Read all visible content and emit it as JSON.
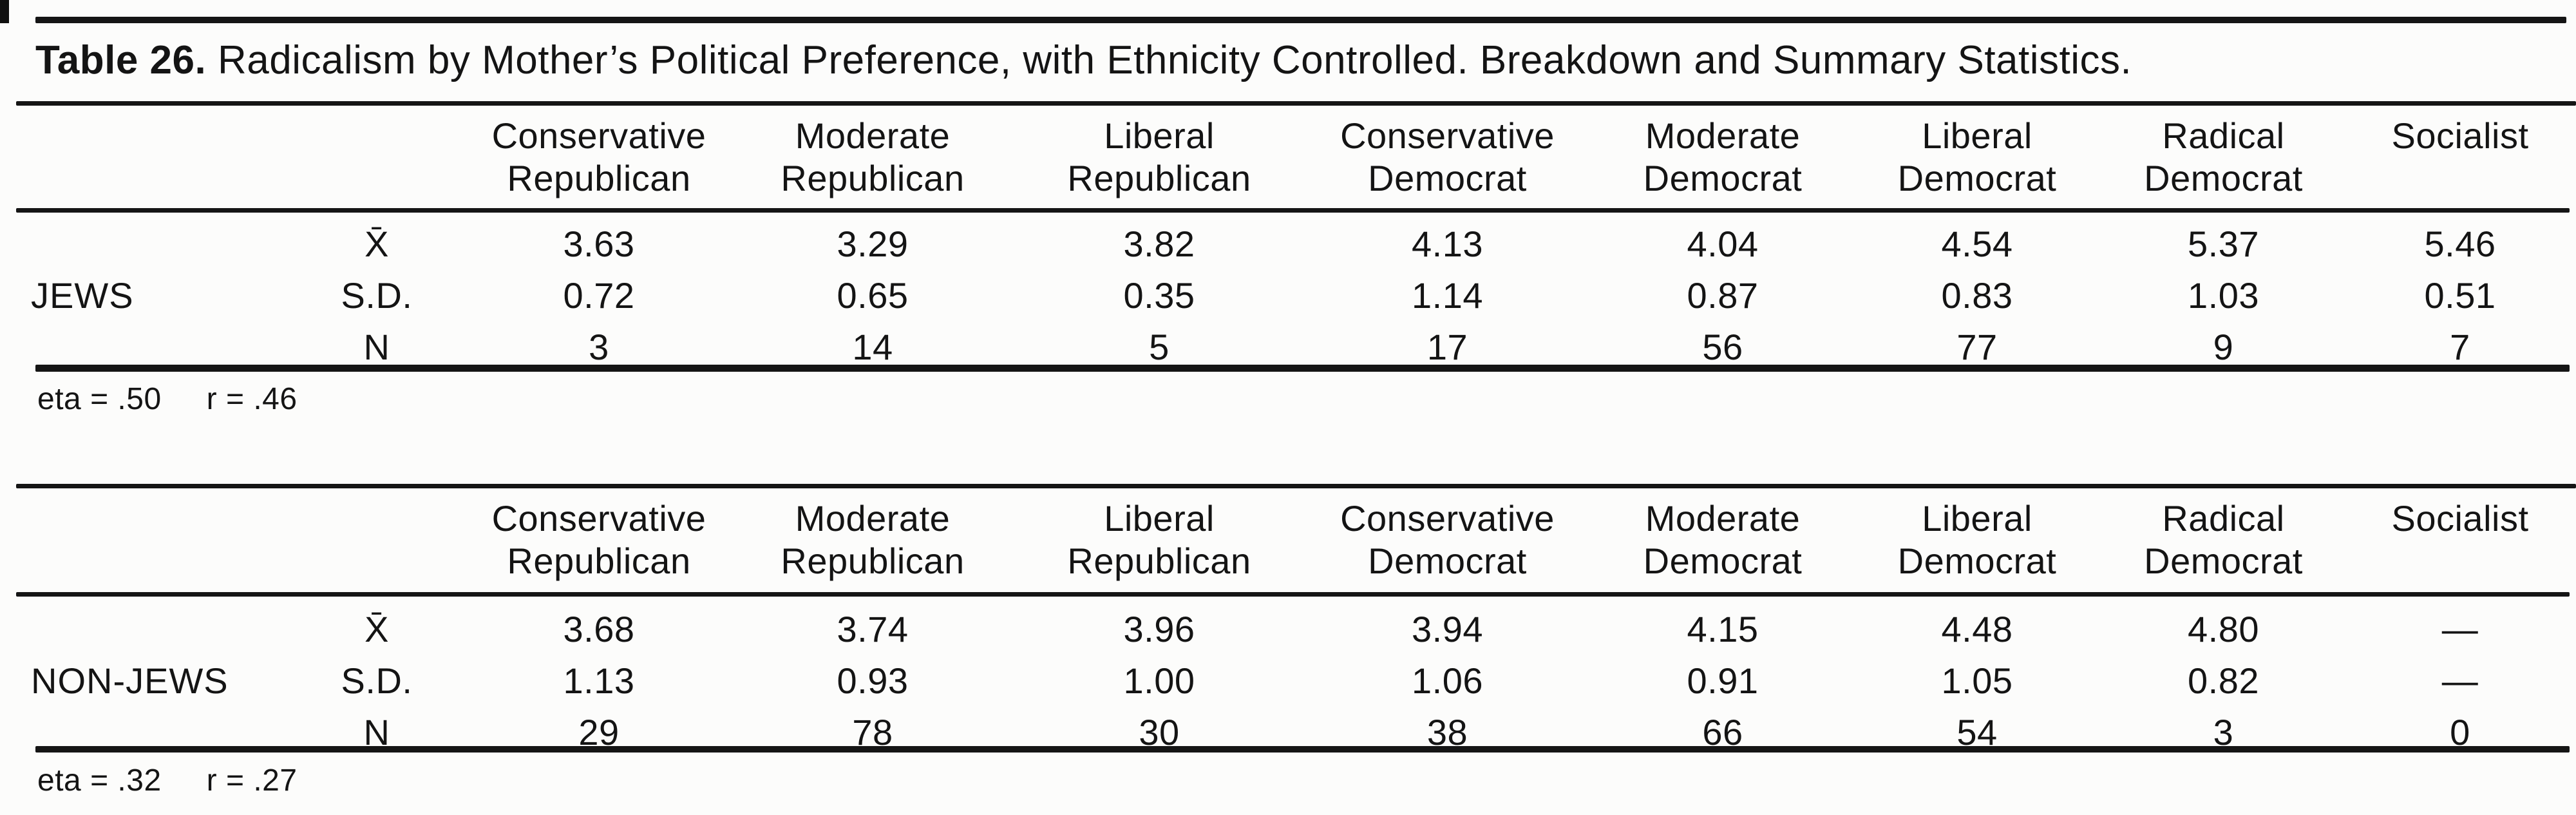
{
  "title": {
    "label": "Table 26.",
    "text": " Radicalism by Mother’s Political Preference, with Ethnicity Controlled. Breakdown and Summary Statistics."
  },
  "columns": [
    {
      "line1": "Conservative",
      "line2": "Republican"
    },
    {
      "line1": "Moderate",
      "line2": "Republican"
    },
    {
      "line1": "Liberal",
      "line2": "Republican"
    },
    {
      "line1": "Conservative",
      "line2": "Democrat"
    },
    {
      "line1": "Moderate",
      "line2": "Democrat"
    },
    {
      "line1": "Liberal",
      "line2": "Democrat"
    },
    {
      "line1": "Radical",
      "line2": "Democrat"
    },
    {
      "line1": "",
      "line2": "Socialist"
    }
  ],
  "sections": [
    {
      "group": "JEWS",
      "rows": [
        {
          "label": "X̄",
          "values": [
            "3.63",
            "3.29",
            "3.82",
            "4.13",
            "4.04",
            "4.54",
            "5.37",
            "5.46"
          ]
        },
        {
          "label": "S.D.",
          "values": [
            "0.72",
            "0.65",
            "0.35",
            "1.14",
            "0.87",
            "0.83",
            "1.03",
            "0.51"
          ]
        },
        {
          "label": "N",
          "values": [
            "3",
            "14",
            "5",
            "17",
            "56",
            "77",
            "9",
            "7"
          ]
        }
      ],
      "stats": {
        "eta": "eta = .50",
        "r": "r = .46"
      }
    },
    {
      "group": "NON-JEWS",
      "rows": [
        {
          "label": "X̄",
          "values": [
            "3.68",
            "3.74",
            "3.96",
            "3.94",
            "4.15",
            "4.48",
            "4.80",
            "—"
          ]
        },
        {
          "label": "S.D.",
          "values": [
            "1.13",
            "0.93",
            "1.00",
            "1.06",
            "0.91",
            "1.05",
            "0.82",
            "—"
          ]
        },
        {
          "label": "N",
          "values": [
            "29",
            "78",
            "30",
            "38",
            "66",
            "54",
            "3",
            "0"
          ]
        }
      ],
      "stats": {
        "eta": "eta = .32",
        "r": "r = .27"
      }
    }
  ]
}
